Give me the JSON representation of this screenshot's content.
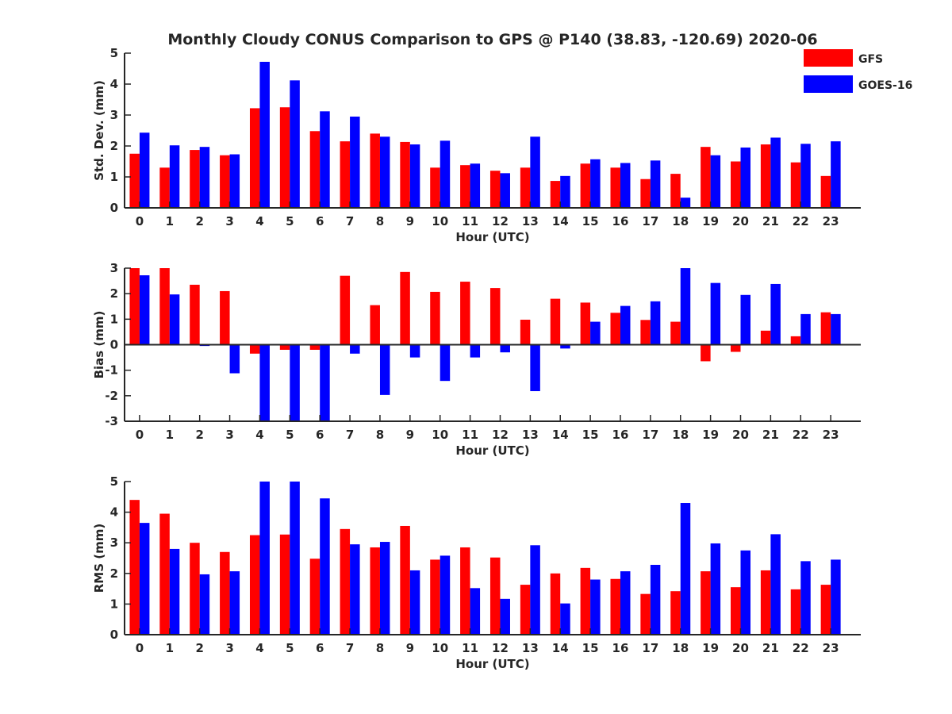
{
  "title": "Monthly Cloudy CONUS Comparison to GPS @ P140 (38.83, -120.69) 2020-06",
  "legend": {
    "placement": "top-right",
    "entries": [
      {
        "name": "GFS",
        "color": "#ff0000"
      },
      {
        "name": "GOES-16",
        "color": "#0000ff"
      }
    ]
  },
  "chart_data": [
    {
      "type": "bar",
      "xlabel": "Hour (UTC)",
      "ylabel": "Std. Dev. (mm)",
      "ylim": [
        0,
        5
      ],
      "yticks": [
        0,
        1,
        2,
        3,
        4,
        5
      ],
      "categories": [
        "0",
        "1",
        "2",
        "3",
        "4",
        "5",
        "6",
        "7",
        "8",
        "9",
        "10",
        "11",
        "12",
        "13",
        "14",
        "15",
        "16",
        "17",
        "18",
        "19",
        "20",
        "21",
        "22",
        "23"
      ],
      "series": [
        {
          "name": "GFS",
          "color": "#ff0000",
          "values": [
            1.75,
            1.3,
            1.87,
            1.7,
            3.22,
            3.25,
            2.48,
            2.15,
            2.4,
            2.13,
            1.3,
            1.38,
            1.2,
            1.3,
            0.87,
            1.43,
            1.3,
            0.93,
            1.1,
            1.97,
            1.5,
            2.05,
            1.47,
            1.03
          ]
        },
        {
          "name": "GOES-16",
          "color": "#0000ff",
          "values": [
            2.43,
            2.02,
            1.97,
            1.73,
            4.72,
            4.12,
            3.12,
            2.95,
            2.3,
            2.05,
            2.17,
            1.43,
            1.12,
            2.3,
            1.03,
            1.57,
            1.45,
            1.53,
            0.33,
            1.7,
            1.95,
            2.27,
            2.07,
            2.15
          ]
        }
      ]
    },
    {
      "type": "bar",
      "xlabel": "Hour (UTC)",
      "ylabel": "Bias (mm)",
      "ylim": [
        -3,
        3
      ],
      "yticks": [
        -3,
        -2,
        -1,
        0,
        1,
        2,
        3
      ],
      "categories": [
        "0",
        "1",
        "2",
        "3",
        "4",
        "5",
        "6",
        "7",
        "8",
        "9",
        "10",
        "11",
        "12",
        "13",
        "14",
        "15",
        "16",
        "17",
        "18",
        "19",
        "20",
        "21",
        "22",
        "23"
      ],
      "series": [
        {
          "name": "GFS",
          "color": "#ff0000",
          "values": [
            3.0,
            3.0,
            2.35,
            2.1,
            -0.35,
            -0.2,
            -0.2,
            2.7,
            1.55,
            2.85,
            2.07,
            2.47,
            2.22,
            0.98,
            1.8,
            1.65,
            1.25,
            0.97,
            0.9,
            -0.65,
            -0.28,
            0.55,
            0.33,
            1.27
          ]
        },
        {
          "name": "GOES-16",
          "color": "#0000ff",
          "values": [
            2.72,
            1.97,
            -0.05,
            -1.12,
            -3.0,
            -3.0,
            -3.0,
            -0.35,
            -1.97,
            -0.5,
            -1.42,
            -0.5,
            -0.3,
            -1.82,
            -0.15,
            0.9,
            1.52,
            1.7,
            3.0,
            2.42,
            1.95,
            2.38,
            1.2,
            1.2
          ]
        }
      ]
    },
    {
      "type": "bar",
      "xlabel": "Hour (UTC)",
      "ylabel": "RMS (mm)",
      "ylim": [
        0,
        5
      ],
      "yticks": [
        0,
        1,
        2,
        3,
        4,
        5
      ],
      "categories": [
        "0",
        "1",
        "2",
        "3",
        "4",
        "5",
        "6",
        "7",
        "8",
        "9",
        "10",
        "11",
        "12",
        "13",
        "14",
        "15",
        "16",
        "17",
        "18",
        "19",
        "20",
        "21",
        "22",
        "23"
      ],
      "series": [
        {
          "name": "GFS",
          "color": "#ff0000",
          "values": [
            4.4,
            3.95,
            3.0,
            2.7,
            3.25,
            3.27,
            2.48,
            3.45,
            2.85,
            3.55,
            2.45,
            2.85,
            2.52,
            1.63,
            2.0,
            2.18,
            1.82,
            1.33,
            1.42,
            2.07,
            1.55,
            2.1,
            1.48,
            1.63
          ]
        },
        {
          "name": "GOES-16",
          "color": "#0000ff",
          "values": [
            3.65,
            2.8,
            1.97,
            2.07,
            5.0,
            5.0,
            4.45,
            2.95,
            3.03,
            2.1,
            2.58,
            1.52,
            1.17,
            2.92,
            1.02,
            1.8,
            2.07,
            2.28,
            4.3,
            2.98,
            2.75,
            3.28,
            2.4,
            2.45
          ]
        }
      ]
    }
  ]
}
